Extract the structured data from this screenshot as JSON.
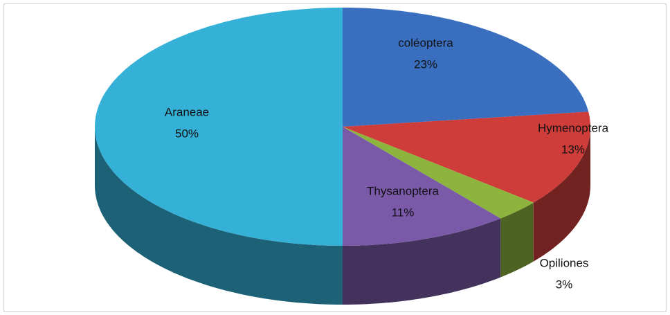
{
  "chart_data": {
    "type": "pie",
    "categories": [
      "coléoptera",
      "Hymenoptera",
      "Opiliones",
      "Thysanoptera",
      "Araneae"
    ],
    "values": [
      23,
      13,
      3,
      11,
      50
    ],
    "value_labels": [
      "23%",
      "13%",
      "3%",
      "11%",
      "50%"
    ],
    "colors": [
      "#3a6fc0",
      "#cf3d3a",
      "#8db43c",
      "#7a5aa8",
      "#35b0d6"
    ]
  }
}
